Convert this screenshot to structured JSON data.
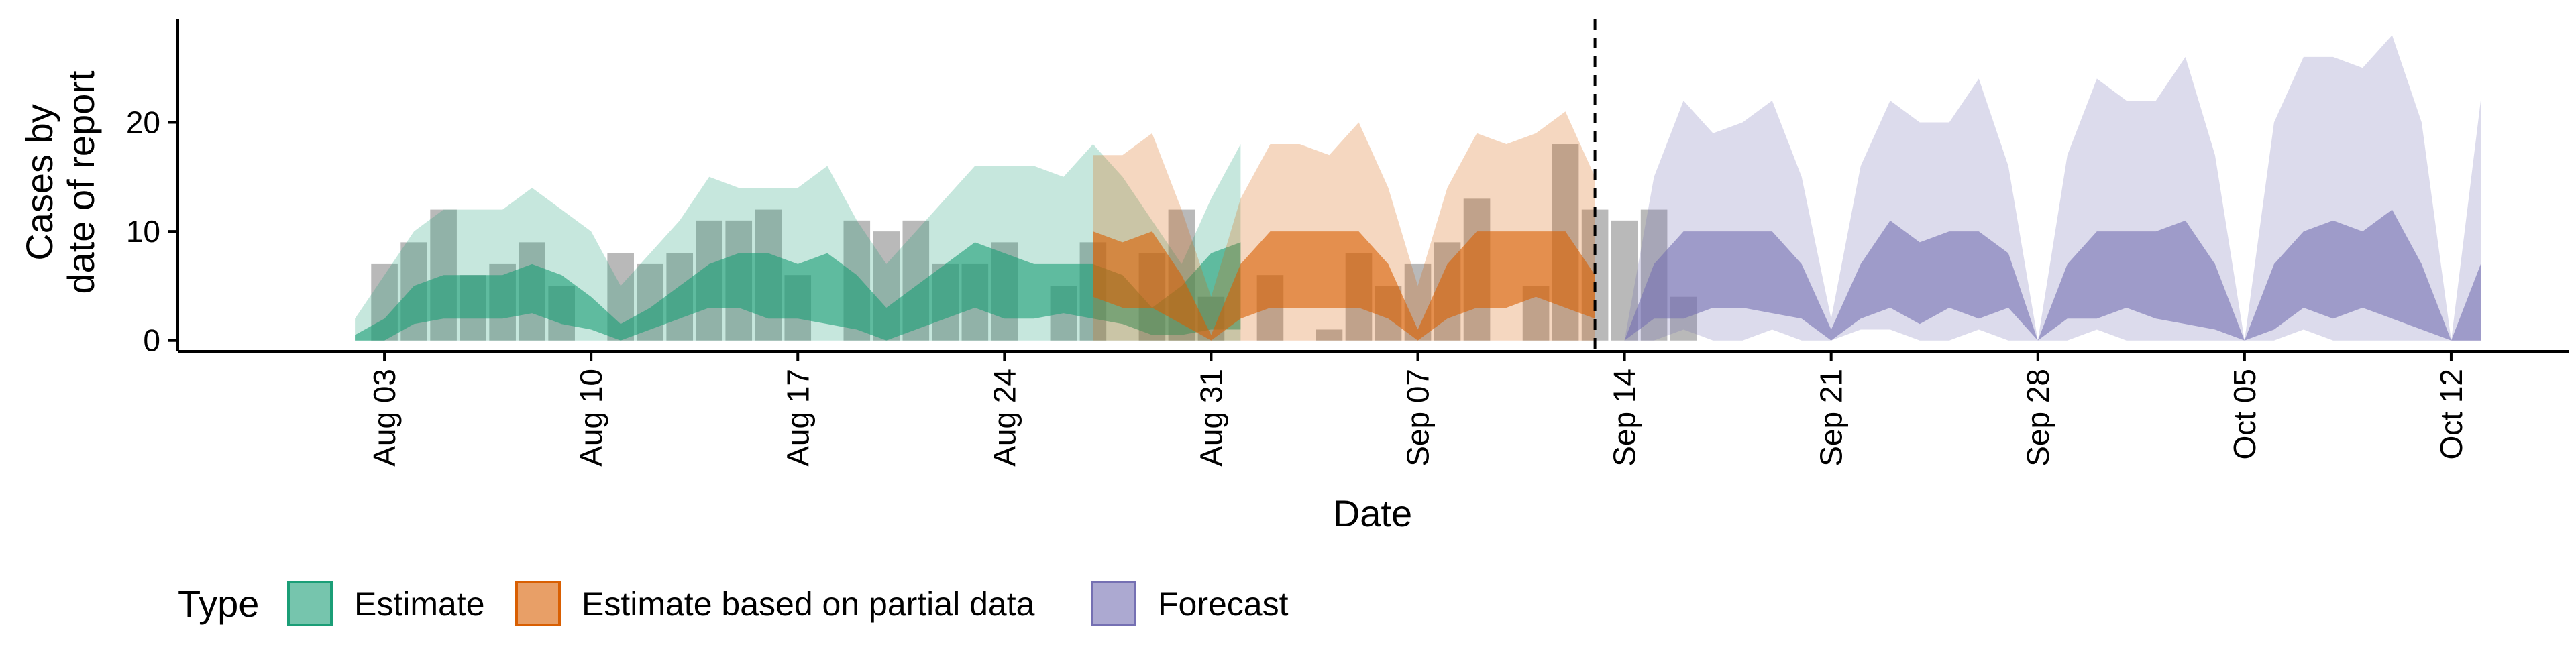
{
  "chart_data": {
    "type": "area",
    "xlabel": "Date",
    "ylabel_lines": [
      "Cases by",
      "date of report"
    ],
    "ylim": [
      -1,
      29.5
    ],
    "y_ticks": [
      0,
      10,
      20
    ],
    "x_domain": [
      "2020-07-27",
      "2020-10-16"
    ],
    "x_ticks": [
      {
        "date": "2020-08-03",
        "label": "Aug 03"
      },
      {
        "date": "2020-08-10",
        "label": "Aug 10"
      },
      {
        "date": "2020-08-17",
        "label": "Aug 17"
      },
      {
        "date": "2020-08-24",
        "label": "Aug 24"
      },
      {
        "date": "2020-08-31",
        "label": "Aug 31"
      },
      {
        "date": "2020-09-07",
        "label": "Sep 07"
      },
      {
        "date": "2020-09-14",
        "label": "Sep 14"
      },
      {
        "date": "2020-09-21",
        "label": "Sep 21"
      },
      {
        "date": "2020-09-28",
        "label": "Sep 28"
      },
      {
        "date": "2020-10-05",
        "label": "Oct 05"
      },
      {
        "date": "2020-10-12",
        "label": "Oct 12"
      }
    ],
    "forecast_date": "2020-09-13",
    "reported_cases": {
      "start": "2020-08-03",
      "values": [
        7,
        9,
        12,
        6,
        7,
        9,
        5,
        0,
        8,
        7,
        8,
        11,
        11,
        12,
        6,
        0,
        11,
        10,
        11,
        7,
        7,
        9,
        0,
        5,
        9,
        0,
        8,
        12,
        4,
        0,
        6,
        0,
        1,
        8,
        5,
        7,
        9,
        13,
        0,
        5,
        18,
        12,
        11,
        12,
        4
      ]
    },
    "series": [
      {
        "name": "Estimate",
        "color": "#1B9E77",
        "start": "2020-08-02",
        "outer_upper": [
          2,
          6,
          10,
          12,
          12,
          12,
          14,
          12,
          10,
          5,
          8,
          11,
          15,
          14,
          14,
          14,
          16,
          11,
          7,
          10,
          13,
          16,
          16,
          16,
          15,
          18,
          15,
          11,
          7,
          13,
          18
        ],
        "inner_upper": [
          0.5,
          2,
          5,
          6,
          6,
          6,
          7,
          6,
          4,
          1.5,
          3,
          5,
          7,
          8,
          8,
          7,
          8,
          6,
          3,
          5,
          7,
          9,
          8,
          7,
          7,
          7,
          6,
          3,
          5,
          8,
          9
        ],
        "inner_lower": [
          0,
          0,
          1.5,
          2,
          2,
          2,
          2.5,
          1.5,
          1,
          0,
          1,
          2,
          3,
          3,
          2,
          2,
          1.5,
          1,
          0,
          1,
          2,
          3,
          2,
          2,
          2.5,
          2,
          1.5,
          0.5,
          0.5,
          1,
          1
        ],
        "outer_lower": [
          0,
          0,
          0,
          0,
          0,
          0,
          0,
          0,
          0,
          0,
          0,
          0,
          0,
          0,
          0,
          0,
          0,
          0,
          0,
          0,
          0,
          0,
          0,
          0,
          0,
          0,
          0,
          0,
          0,
          0,
          0
        ]
      },
      {
        "name": "Estimate based on partial data",
        "color": "#D95F02",
        "start": "2020-08-27",
        "outer_upper": [
          17,
          17,
          19,
          12,
          4,
          13,
          18,
          18,
          17,
          20,
          14,
          5,
          14,
          19,
          18,
          19,
          21,
          15
        ],
        "inner_upper": [
          10,
          9,
          10,
          6,
          0.5,
          7,
          10,
          10,
          10,
          10,
          7,
          1,
          7,
          10,
          10,
          10,
          10,
          6
        ],
        "inner_lower": [
          4,
          3,
          3,
          1.5,
          0,
          2,
          3,
          3,
          3,
          3,
          2,
          0,
          2,
          3,
          3,
          4,
          3,
          2
        ],
        "outer_lower": [
          0,
          0,
          0,
          0,
          0,
          0,
          0,
          0,
          0,
          0,
          0,
          0,
          0,
          0,
          0,
          0,
          0,
          0
        ]
      },
      {
        "name": "Forecast",
        "color": "#7570B3",
        "start": "2020-09-14",
        "outer_upper": [
          0,
          15,
          22,
          19,
          20,
          22,
          15,
          2,
          16,
          22,
          20,
          20,
          24,
          16,
          0,
          17,
          24,
          22,
          22,
          26,
          17,
          0,
          20,
          26,
          26,
          25,
          28,
          20,
          0,
          22
        ],
        "inner_upper": [
          0,
          7,
          10,
          10,
          10,
          10,
          7,
          1,
          7,
          11,
          9,
          10,
          10,
          8,
          0,
          7,
          10,
          10,
          10,
          11,
          7,
          0,
          7,
          10,
          11,
          10,
          12,
          7,
          0,
          7
        ],
        "inner_lower": [
          0,
          2,
          2,
          3,
          3,
          2.5,
          2,
          0,
          2,
          3,
          1.5,
          3,
          2,
          3,
          0,
          2,
          2,
          3,
          2,
          1.5,
          1,
          0,
          1,
          3,
          2,
          3,
          2,
          1,
          0,
          0
        ],
        "outer_lower": [
          0,
          0,
          1,
          0,
          0,
          1,
          0,
          0,
          1,
          1,
          0,
          0,
          1,
          0,
          0,
          0,
          1,
          0,
          0,
          0,
          0,
          0,
          0,
          1,
          0,
          0,
          0,
          0,
          0,
          0
        ]
      }
    ],
    "legend": {
      "position": "bottom-left",
      "title": "Type",
      "items": [
        {
          "label": "Estimate",
          "color": "#1B9E77"
        },
        {
          "label": "Estimate based on partial data",
          "color": "#D95F02"
        },
        {
          "label": "Forecast",
          "color": "#7570B3"
        }
      ]
    },
    "grid": false
  }
}
